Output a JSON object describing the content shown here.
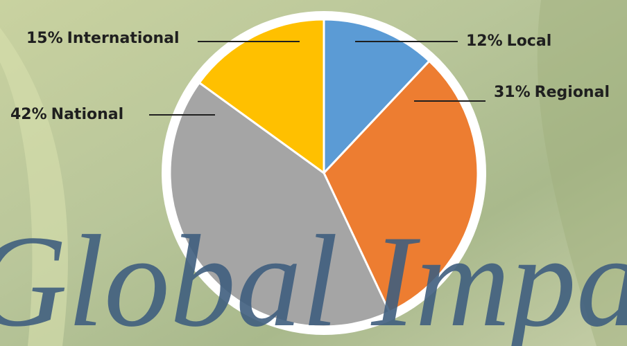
{
  "chart_data": {
    "type": "pie",
    "title": "Global Impact",
    "categories": [
      "Local",
      "Regional",
      "National",
      "International"
    ],
    "values": [
      12,
      31,
      42,
      15
    ],
    "value_labels": [
      "12%",
      "31%",
      "42%",
      "15%"
    ],
    "colors": [
      "#5b9bd5",
      "#ed7d31",
      "#a5a5a5",
      "#ffc000"
    ]
  }
}
